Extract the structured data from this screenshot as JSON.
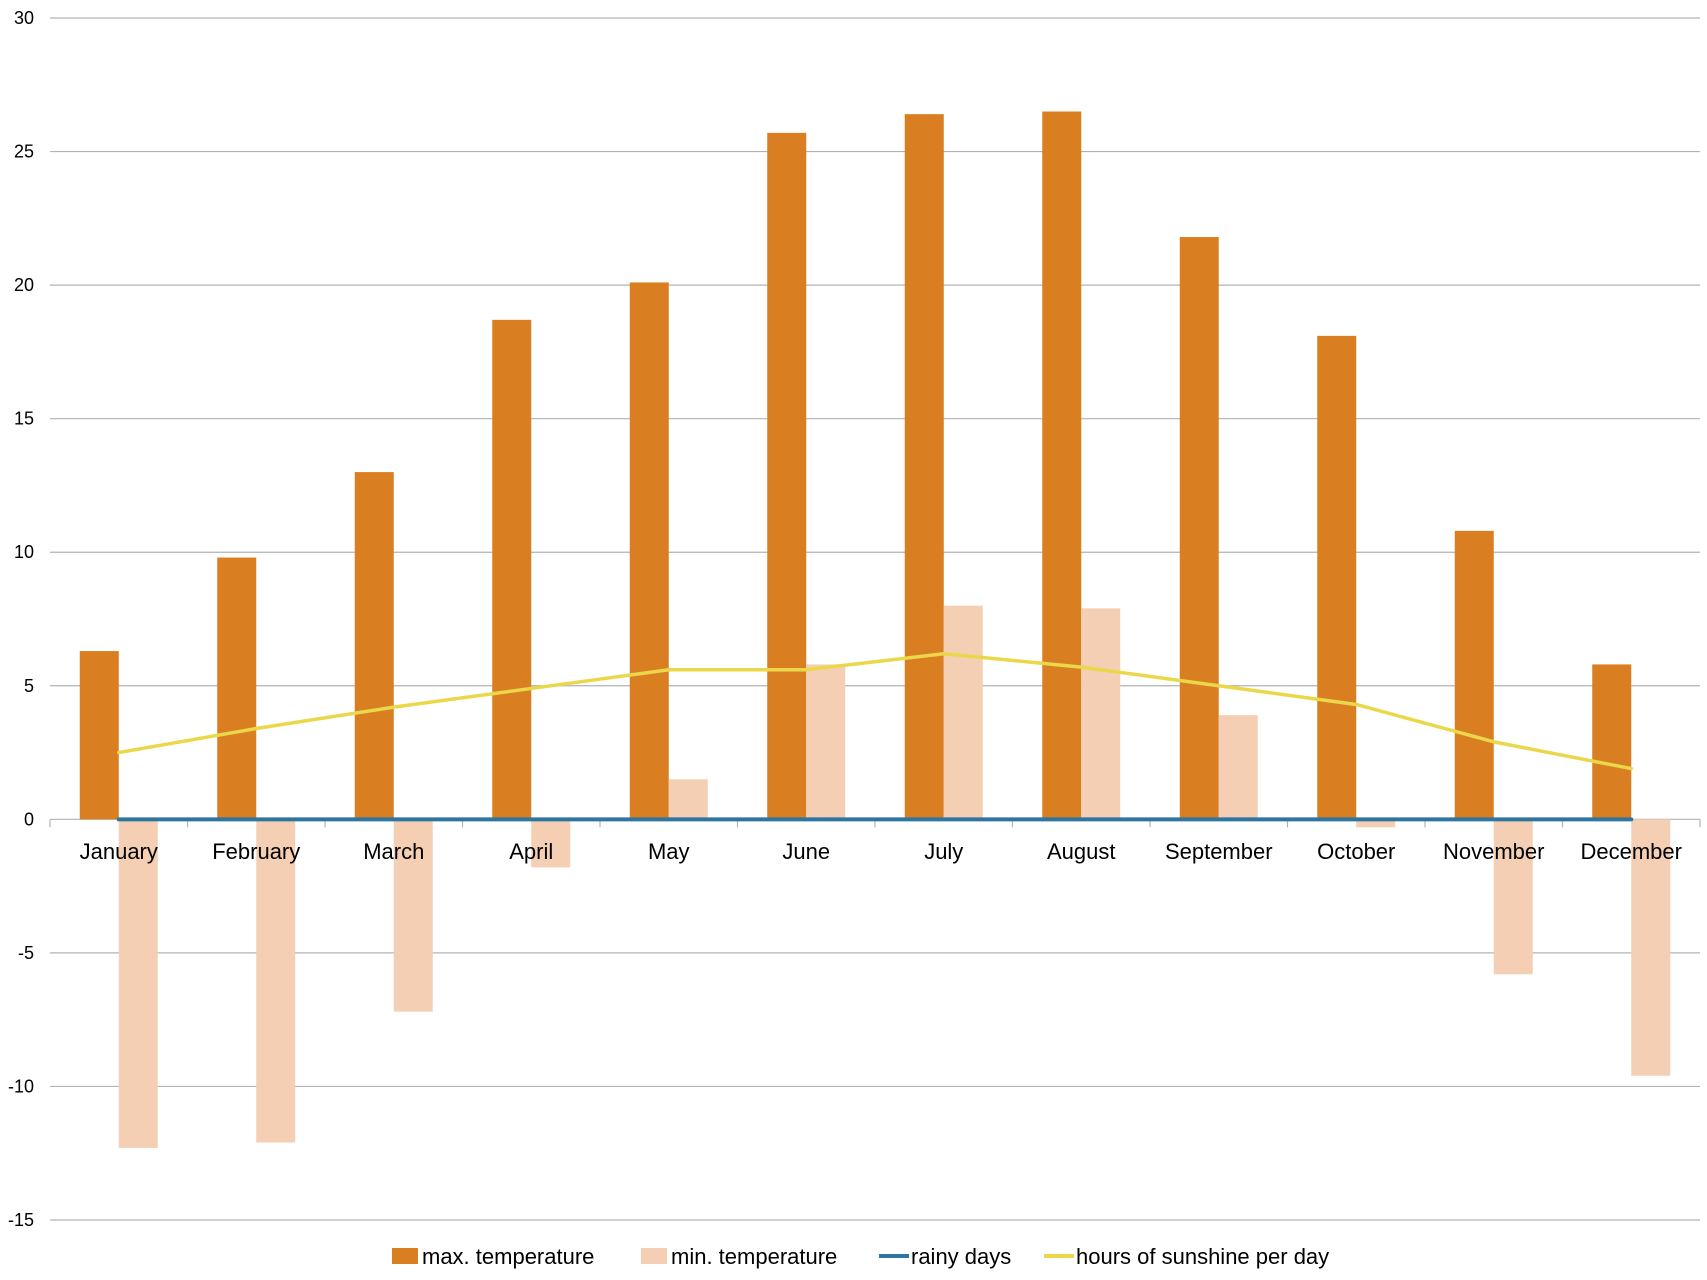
{
  "chart_data": {
    "type": "bar",
    "categories": [
      "January",
      "February",
      "March",
      "April",
      "May",
      "June",
      "July",
      "August",
      "September",
      "October",
      "November",
      "December"
    ],
    "series": [
      {
        "name": "max.  temperature",
        "type": "bar",
        "color": "#d97f22",
        "values": [
          6.3,
          9.8,
          13.0,
          18.7,
          20.1,
          25.7,
          26.4,
          26.5,
          21.8,
          18.1,
          10.8,
          5.8
        ]
      },
      {
        "name": "min. temperature",
        "type": "bar",
        "color": "#f4cfb4",
        "values": [
          -12.3,
          -12.1,
          -7.2,
          -1.8,
          1.5,
          5.8,
          8.0,
          7.9,
          3.9,
          -0.3,
          -5.8,
          -9.6
        ]
      },
      {
        "name": "rainy days",
        "type": "line",
        "color": "#2e75a0",
        "values": [
          0,
          0,
          0,
          0,
          0,
          0,
          0,
          0,
          0,
          0,
          0,
          0
        ]
      },
      {
        "name": "hours of sunshine per day",
        "type": "line",
        "color": "#ead84a",
        "values": [
          2.5,
          3.4,
          4.2,
          4.9,
          5.6,
          5.6,
          6.2,
          5.7,
          5.0,
          4.3,
          2.9,
          1.9
        ]
      }
    ],
    "ylim": [
      -15,
      30
    ],
    "yticks": [
      30,
      25,
      20,
      15,
      10,
      5,
      0,
      -5,
      -10,
      -15
    ],
    "title": "",
    "xlabel": "",
    "ylabel": "",
    "grid": true,
    "legend_position": "bottom"
  }
}
